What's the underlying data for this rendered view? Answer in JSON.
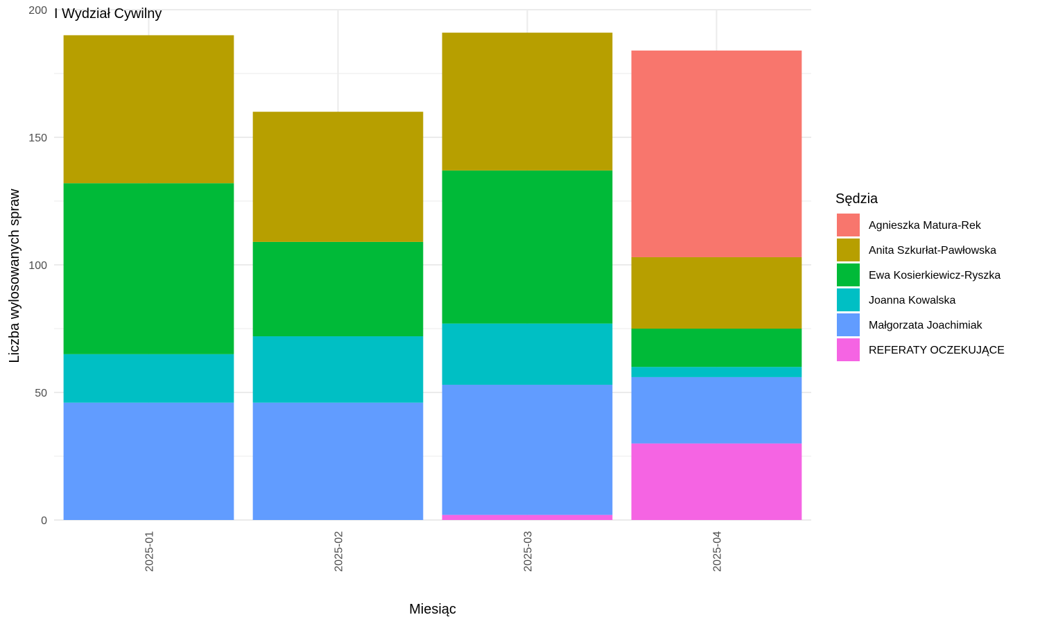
{
  "chart_data": {
    "type": "bar",
    "stacked": true,
    "title": "I Wydział Cywilny",
    "xlabel": "Miesiąc",
    "ylabel": "Liczba wylosowanych spraw",
    "ylim": [
      0,
      200
    ],
    "yticks": [
      0,
      50,
      100,
      150,
      200
    ],
    "grid": true,
    "legend_position": "right",
    "legend_title": "Sędzia",
    "categories": [
      "2025-01",
      "2025-02",
      "2025-03",
      "2025-04"
    ],
    "stack_order_bottom_to_top": [
      "REFERATY OCZEKUJĄCE",
      "Małgorzata Joachimiak",
      "Joanna Kowalska",
      "Ewa Kosierkiewicz-Ryszka",
      "Anita Szkurłat-Pawłowska",
      "Agnieszka Matura-Rek"
    ],
    "series": [
      {
        "name": "Agnieszka Matura-Rek",
        "color": "#F8766D",
        "values": [
          0,
          0,
          0,
          81
        ]
      },
      {
        "name": "Anita Szkurłat-Pawłowska",
        "color": "#B79F00",
        "values": [
          58,
          51,
          54,
          28
        ]
      },
      {
        "name": "Ewa Kosierkiewicz-Ryszka",
        "color": "#00BA38",
        "values": [
          67,
          37,
          60,
          15
        ]
      },
      {
        "name": "Joanna Kowalska",
        "color": "#00BFC4",
        "values": [
          19,
          26,
          24,
          4
        ]
      },
      {
        "name": "Małgorzata Joachimiak",
        "color": "#619CFF",
        "values": [
          46,
          46,
          51,
          26
        ]
      },
      {
        "name": "REFERATY OCZEKUJĄCE",
        "color": "#F564E3",
        "values": [
          0,
          0,
          2,
          30
        ]
      }
    ]
  }
}
